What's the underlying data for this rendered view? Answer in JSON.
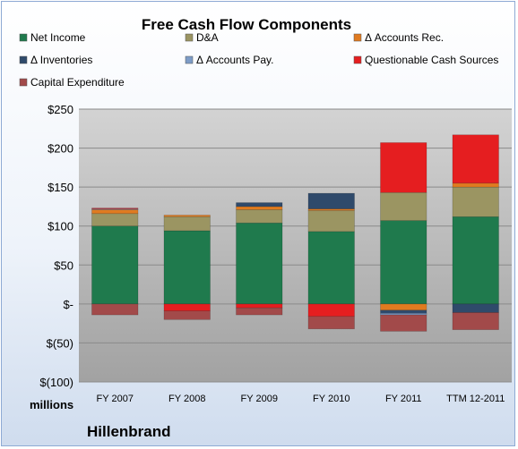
{
  "chart_data": {
    "type": "bar",
    "stacked": true,
    "title": "Free Cash Flow Components",
    "categories": [
      "FY 2007",
      "FY 2008",
      "FY 2009",
      "FY 2010",
      "FY 2011",
      "TTM 12-2011"
    ],
    "ylim": [
      -100,
      250
    ],
    "yticks": [
      {
        "value": 250,
        "label": "$250"
      },
      {
        "value": 200,
        "label": "$200"
      },
      {
        "value": 150,
        "label": "$150"
      },
      {
        "value": 100,
        "label": "$100"
      },
      {
        "value": 50,
        "label": "$50"
      },
      {
        "value": 0,
        "label": "$-"
      },
      {
        "value": -50,
        "label": "$(50)"
      },
      {
        "value": -100,
        "label": "$(100)"
      }
    ],
    "units_label": "millions",
    "company": "Hillenbrand",
    "legend_position": "top",
    "series": [
      {
        "name": "Net Income",
        "color": "#1f7a4d",
        "values": [
          100,
          94,
          104,
          93,
          107,
          112
        ]
      },
      {
        "name": "D&A",
        "color": "#9b9562",
        "values": [
          16,
          18,
          17,
          27,
          36,
          38
        ]
      },
      {
        "name": "Δ Accounts Rec.",
        "color": "#e07b20",
        "values": [
          5,
          2,
          4,
          2,
          -8,
          5
        ]
      },
      {
        "name": "Δ Inventories",
        "color": "#2f4a6b",
        "values": [
          0,
          0,
          5,
          20,
          -4,
          -11
        ]
      },
      {
        "name": "Δ Accounts Pay.",
        "color": "#7d9cc7",
        "values": [
          1,
          0,
          0,
          0,
          -2,
          0
        ]
      },
      {
        "name": "Questionable Cash Sources",
        "color": "#e51e20",
        "values": [
          1,
          -9,
          -5,
          -16,
          64,
          62
        ]
      },
      {
        "name": "Capital Expenditure",
        "color": "#a24a4a",
        "values": [
          -14,
          -11,
          -9,
          -16,
          -21,
          -22
        ]
      }
    ]
  }
}
